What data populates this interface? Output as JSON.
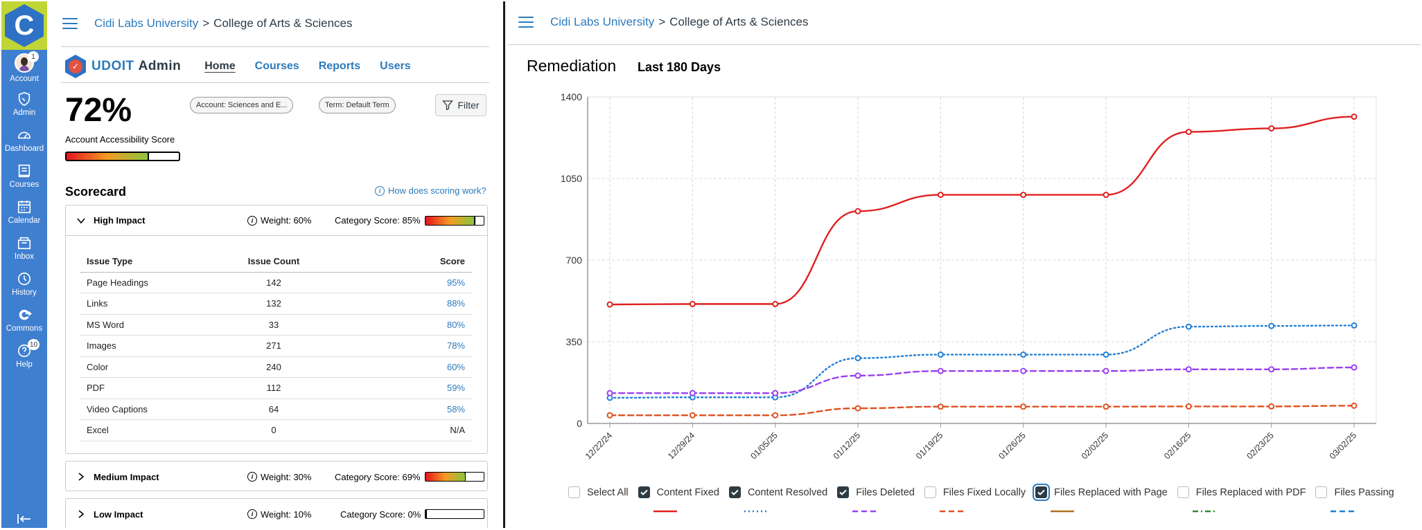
{
  "nav": {
    "logo": "C",
    "items": [
      {
        "label": "Account",
        "icon": "avatar",
        "badge": "1"
      },
      {
        "label": "Admin",
        "icon": "shield-icon"
      },
      {
        "label": "Dashboard",
        "icon": "dashboard-icon"
      },
      {
        "label": "Courses",
        "icon": "book-icon"
      },
      {
        "label": "Calendar",
        "icon": "calendar-icon"
      },
      {
        "label": "Inbox",
        "icon": "inbox-icon"
      },
      {
        "label": "History",
        "icon": "clock-icon"
      },
      {
        "label": "Commons",
        "icon": "commons-icon"
      },
      {
        "label": "Help",
        "icon": "help-icon",
        "badge": "10"
      }
    ]
  },
  "left": {
    "breadcrumb": {
      "root": "Cidi Labs University",
      "sep": ">",
      "current": "College of Arts & Sciences"
    },
    "udoit": {
      "title": "UDOIT",
      "admin": "Admin",
      "tabs": [
        "Home",
        "Courses",
        "Reports",
        "Users"
      ]
    },
    "score": {
      "value": "72%",
      "label": "Account Accessibility Score",
      "fraction": 0.72
    },
    "filters": {
      "account": "Account: Sciences and E...",
      "term": "Term: Default Term",
      "button": "Filter"
    },
    "scorecard": {
      "title": "Scorecard",
      "help": "How does scoring work?",
      "columns": [
        "Issue Type",
        "Issue Count",
        "Score"
      ],
      "categories": [
        {
          "name": "High Impact",
          "weight": "Weight: 60%",
          "category_score": "Category Score: 85%",
          "fraction": 0.85,
          "rows": [
            {
              "type": "Page Headings",
              "count": "142",
              "score": "95%"
            },
            {
              "type": "Links",
              "count": "132",
              "score": "88%"
            },
            {
              "type": "MS Word",
              "count": "33",
              "score": "80%"
            },
            {
              "type": "Images",
              "count": "271",
              "score": "78%"
            },
            {
              "type": "Color",
              "count": "240",
              "score": "60%"
            },
            {
              "type": "PDF",
              "count": "112",
              "score": "59%"
            },
            {
              "type": "Video Captions",
              "count": "64",
              "score": "58%"
            },
            {
              "type": "Excel",
              "count": "0",
              "score": "N/A"
            }
          ]
        },
        {
          "name": "Medium Impact",
          "weight": "Weight: 30%",
          "category_score": "Category Score: 69%",
          "fraction": 0.69
        },
        {
          "name": "Low Impact",
          "weight": "Weight: 10%",
          "category_score": "Category Score: 0%",
          "fraction": 0
        }
      ]
    }
  },
  "right": {
    "breadcrumb": {
      "root": "Cidi Labs University",
      "sep": ">",
      "current": "College of Arts & Sciences"
    },
    "title": "Remediation",
    "subtitle": "Last 180 Days",
    "legend": [
      {
        "label": "Select All",
        "checked": false
      },
      {
        "label": "Content Fixed",
        "checked": true,
        "color": "#e02020",
        "dash": "solid"
      },
      {
        "label": "Content Resolved",
        "checked": true,
        "color": "#1e7fd6",
        "dash": "dot"
      },
      {
        "label": "Files Deleted",
        "checked": true,
        "color": "#9b3ff0",
        "dash": "dash"
      },
      {
        "label": "Files Fixed Locally",
        "checked": false,
        "color": "#e0501e",
        "dash": "dash"
      },
      {
        "label": "Files Replaced with Page",
        "checked": true,
        "color": "#b0721e",
        "dash": "solid"
      },
      {
        "label": "Files Replaced with PDF",
        "checked": false,
        "color": "#2e8b2e",
        "dash": "dashdot"
      },
      {
        "label": "Files Passing",
        "checked": false,
        "color": "#1e7fd6",
        "dash": "dash"
      }
    ]
  },
  "chart_data": {
    "type": "line",
    "title": "Remediation",
    "subtitle": "Last 180 Days",
    "categories": [
      "12/22/24",
      "12/29/24",
      "01/05/25",
      "01/12/25",
      "01/19/25",
      "01/26/25",
      "02/02/25",
      "02/16/25",
      "02/23/25",
      "03/02/25"
    ],
    "ylim": [
      0,
      1400
    ],
    "yticks": [
      0,
      350,
      700,
      1050,
      1400
    ],
    "grid": true,
    "series": [
      {
        "name": "Content Fixed",
        "color": "#e02020",
        "dash": "solid",
        "values": [
          510,
          512,
          512,
          910,
          980,
          980,
          980,
          1250,
          1265,
          1315
        ]
      },
      {
        "name": "Content Resolved",
        "color": "#1e7fd6",
        "dash": "dot",
        "values": [
          110,
          112,
          112,
          280,
          295,
          295,
          295,
          415,
          418,
          420
        ]
      },
      {
        "name": "Files Deleted",
        "color": "#9b3ff0",
        "dash": "dash",
        "values": [
          130,
          130,
          130,
          205,
          225,
          225,
          225,
          232,
          232,
          240
        ]
      },
      {
        "name": "Files Fixed Locally",
        "color": "#e0501e",
        "dash": "dash",
        "values": [
          35,
          35,
          35,
          65,
          72,
          72,
          72,
          73,
          73,
          76
        ]
      }
    ]
  }
}
